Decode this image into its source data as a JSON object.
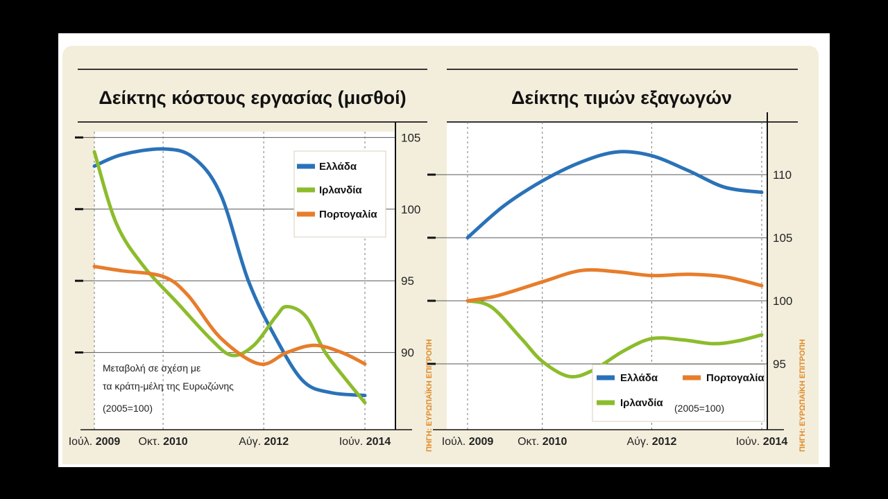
{
  "colors": {
    "greece": "#2a72b8",
    "ireland": "#8cbc2c",
    "portugal": "#e77d2b",
    "source": "#e08a2a"
  },
  "source_label": "ΠΗΓΗ: ΕΥΡΩΠΑΪΚΗ ΕΠΙΤΡΟΠΗ",
  "chart_data": [
    {
      "type": "line",
      "title": "Δείκτης κόστους εργασίας (μισθοί)",
      "x_tick_labels": [
        {
          "pre": "Ιούλ.",
          "year": "2009"
        },
        {
          "pre": "Οκτ.",
          "year": "2010"
        },
        {
          "pre": "Αύγ.",
          "year": "2012"
        },
        {
          "pre": "Ιούν.",
          "year": "2014"
        }
      ],
      "x_ticks": [
        2009.5,
        2010.75,
        2012.58,
        2014.42
      ],
      "xlim": [
        2009.5,
        2014.75
      ],
      "ylim": [
        85,
        105.5
      ],
      "y_ticks": [
        90,
        95,
        100,
        105
      ],
      "y_axis_side": "right",
      "grid": true,
      "legend_position": "top-right",
      "annotation": {
        "lines": [
          "Μεταβολή σε σχέση με",
          "τα κράτη-μέλη της Ευρωζώνης",
          "(2005=100)"
        ]
      },
      "series": [
        {
          "name": "Ελλάδα",
          "color_key": "greece",
          "x": [
            2009.5,
            2010.0,
            2010.75,
            2011.3,
            2011.8,
            2012.3,
            2012.8,
            2013.3,
            2013.8,
            2014.42
          ],
          "y": [
            103,
            103.8,
            104.2,
            103.6,
            101,
            95,
            91,
            88,
            87.2,
            87
          ]
        },
        {
          "name": "Ιρλανδία",
          "color_key": "ireland",
          "x": [
            2009.5,
            2009.9,
            2010.4,
            2011.0,
            2011.6,
            2012.0,
            2012.4,
            2012.8,
            2013.0,
            2013.35,
            2013.7,
            2014.1,
            2014.42
          ],
          "y": [
            104,
            99,
            96,
            93.5,
            91,
            89.8,
            90.5,
            92.5,
            93.2,
            92.5,
            90,
            88,
            86.5
          ]
        },
        {
          "name": "Πορτογαλία",
          "color_key": "portugal",
          "x": [
            2009.5,
            2010.0,
            2010.75,
            2011.2,
            2011.8,
            2012.5,
            2013.0,
            2013.5,
            2014.0,
            2014.42
          ],
          "y": [
            96,
            95.7,
            95.3,
            94,
            91,
            89.2,
            90,
            90.5,
            90,
            89.2
          ]
        }
      ]
    },
    {
      "type": "line",
      "title": "Δείκτης τιμών εξαγωγών",
      "x_tick_labels": [
        {
          "pre": "Ιούλ.",
          "year": "2009"
        },
        {
          "pre": "Οκτ.",
          "year": "2010"
        },
        {
          "pre": "Αύγ.",
          "year": "2012"
        },
        {
          "pre": "Ιούν.",
          "year": "2014"
        }
      ],
      "x_ticks": [
        2009.5,
        2010.75,
        2012.58,
        2014.42
      ],
      "xlim": [
        2009.5,
        2014.75
      ],
      "ylim": [
        90,
        115
      ],
      "y_ticks": [
        95,
        100,
        105,
        110
      ],
      "y_axis_side": "right",
      "grid": true,
      "legend_position": "bottom-right",
      "annotation": {
        "lines": [
          "(2005=100)"
        ]
      },
      "series": [
        {
          "name": "Ελλάδα",
          "color_key": "greece",
          "x": [
            2009.5,
            2010.1,
            2010.75,
            2011.4,
            2012.0,
            2012.58,
            2013.2,
            2013.8,
            2014.42
          ],
          "y": [
            105,
            107.5,
            109.5,
            111,
            111.8,
            111.5,
            110.3,
            109,
            108.6
          ]
        },
        {
          "name": "Ιρλανδία",
          "color_key": "ireland",
          "x": [
            2009.5,
            2009.9,
            2010.4,
            2010.75,
            2011.2,
            2011.6,
            2012.1,
            2012.58,
            2013.1,
            2013.6,
            2014.0,
            2014.42
          ],
          "y": [
            100,
            99.5,
            97,
            95.2,
            94,
            94.5,
            96,
            97,
            96.9,
            96.6,
            96.8,
            97.3
          ]
        },
        {
          "name": "Πορτογαλία",
          "color_key": "portugal",
          "x": [
            2009.5,
            2010.0,
            2010.75,
            2011.4,
            2012.0,
            2012.58,
            2013.2,
            2013.8,
            2014.42
          ],
          "y": [
            100,
            100.4,
            101.5,
            102.4,
            102.3,
            102.0,
            102.1,
            101.9,
            101.2
          ]
        }
      ]
    }
  ]
}
